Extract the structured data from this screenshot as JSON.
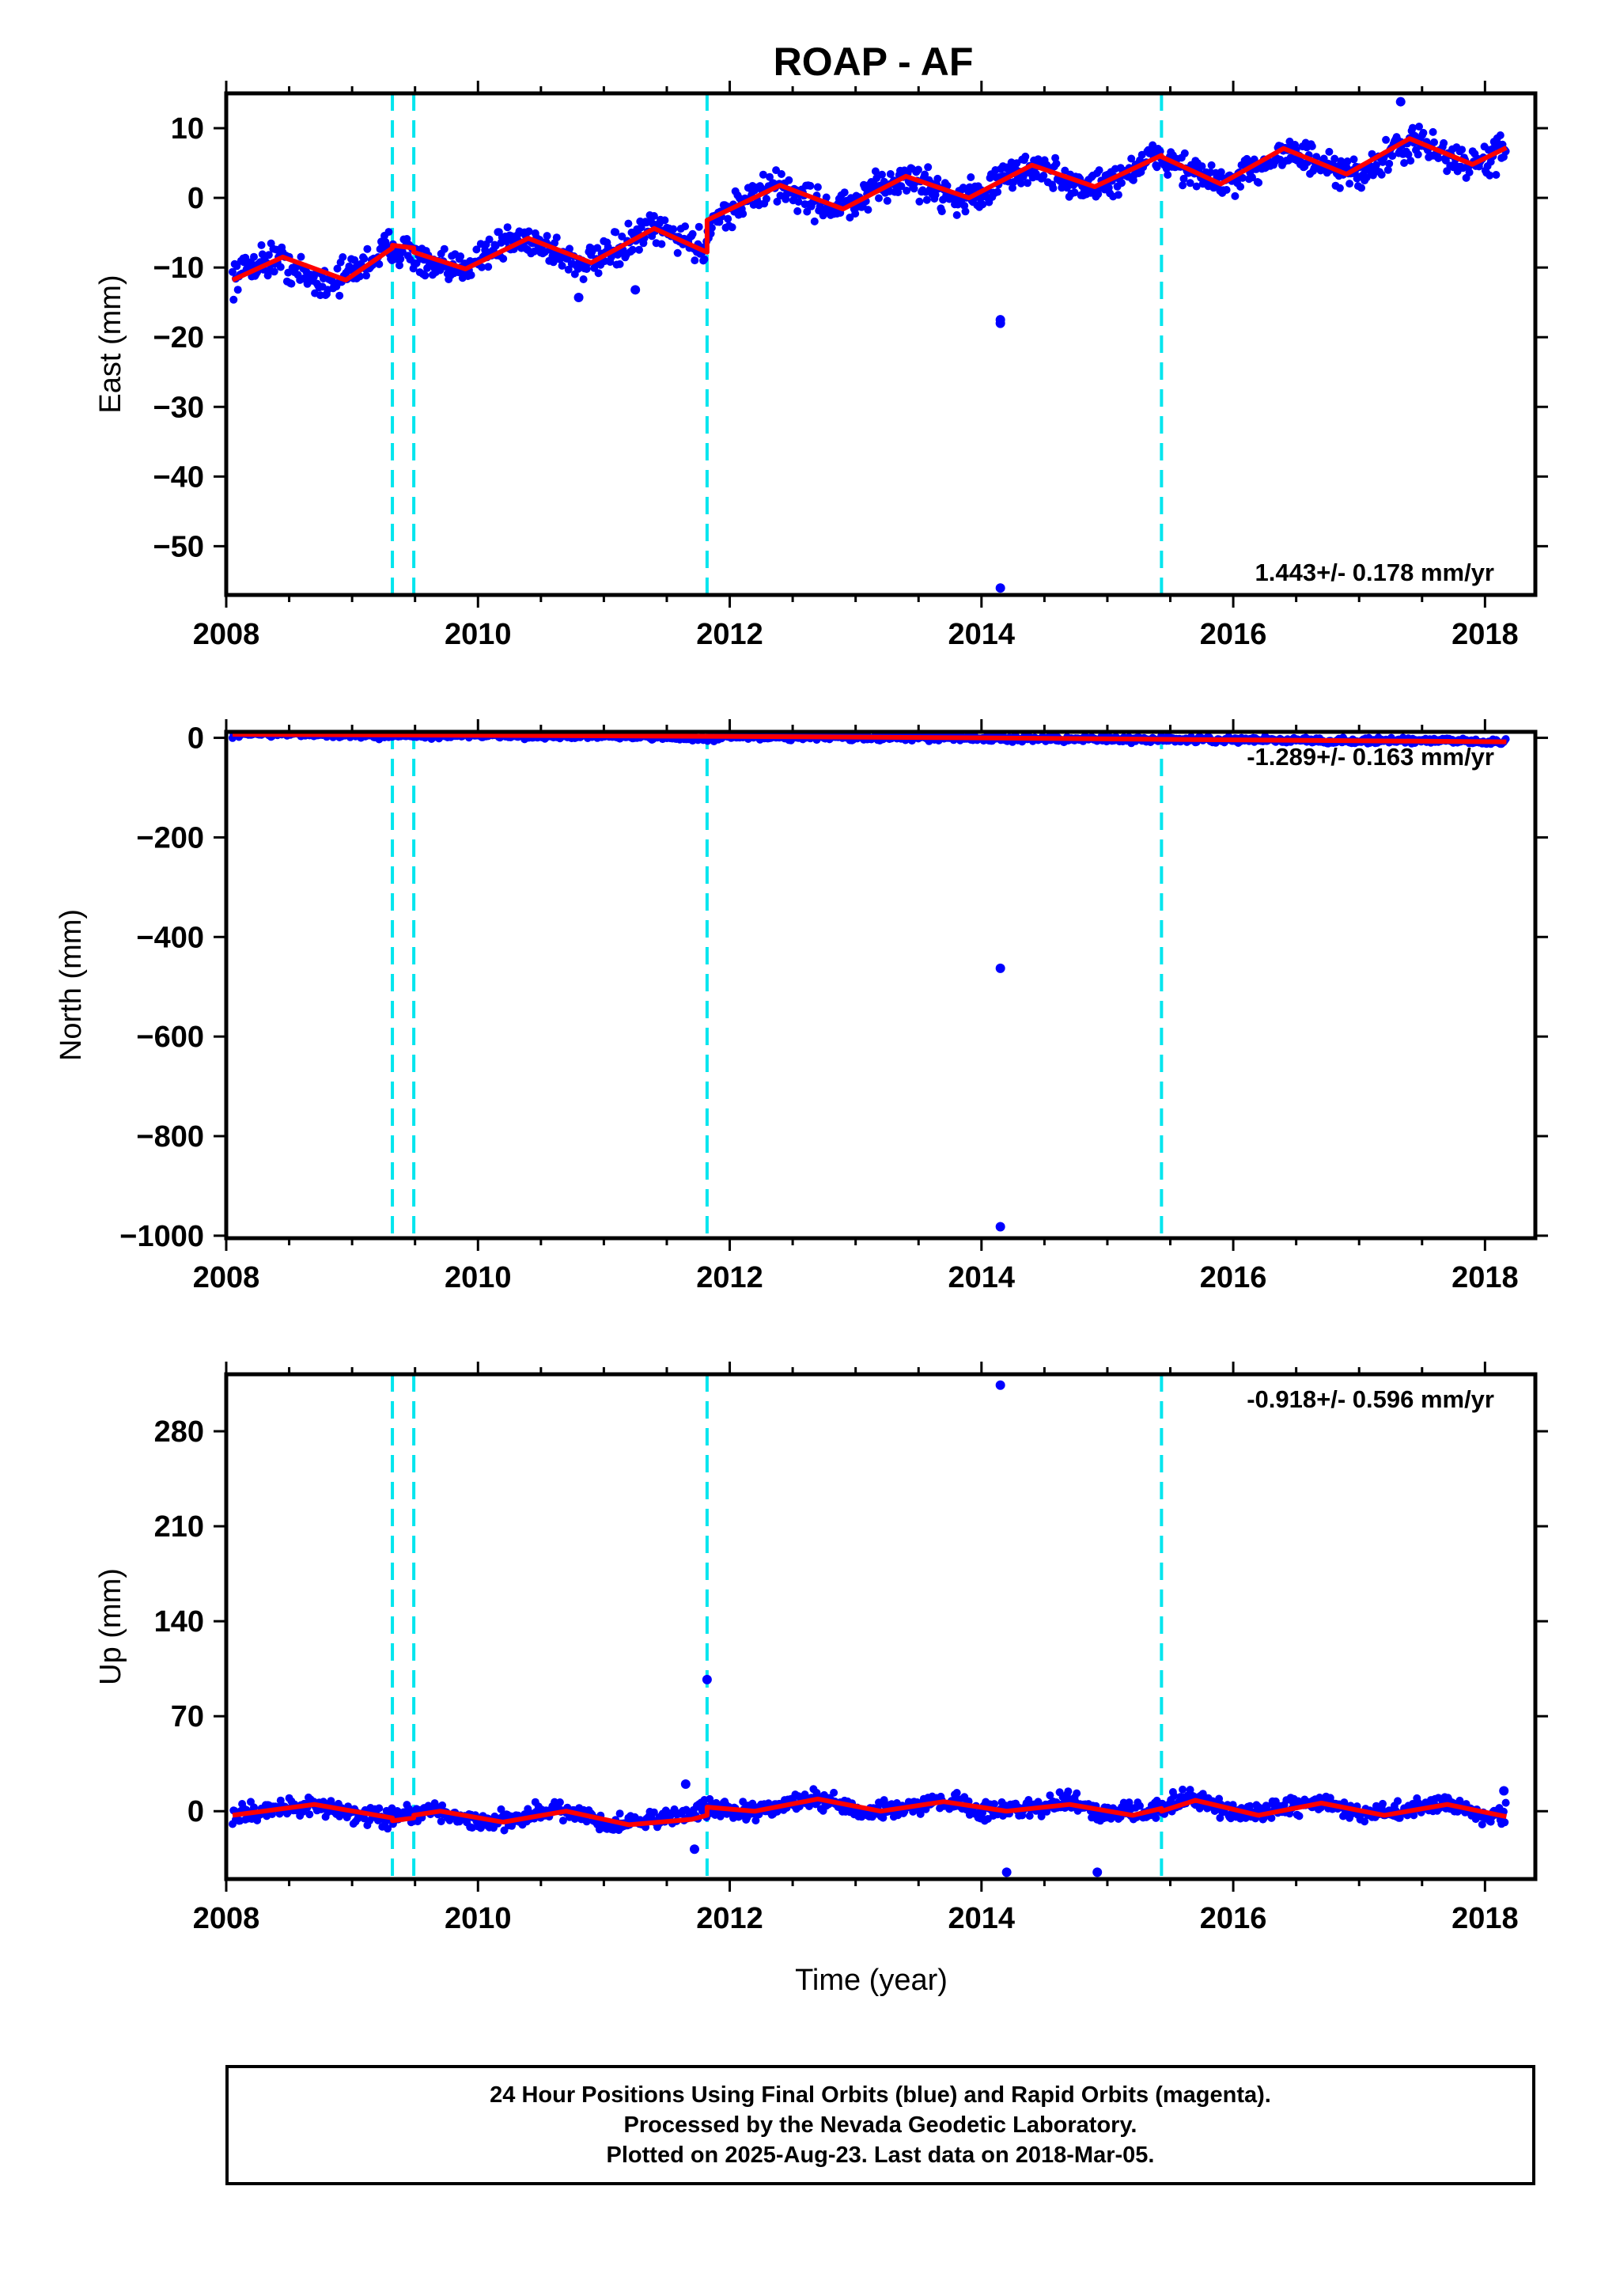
{
  "title": "ROAP - AF",
  "footer": {
    "line1": "24 Hour Positions Using Final Orbits (blue) and Rapid Orbits (magenta).",
    "line2": "Processed by the Nevada Geodetic Laboratory.",
    "line3": "Plotted on 2025-Aug-23. Last data on 2018-Mar-05."
  },
  "colors": {
    "points": "#0000ff",
    "fit": "#ff0000",
    "offsets": "#00e5ee",
    "axes": "#000000"
  },
  "chart_data": [
    {
      "type": "scatter",
      "title": "ROAP - AF",
      "ylabel": "East (mm)",
      "xlabel": "",
      "xlim": [
        2008.0,
        2018.4
      ],
      "ylim": [
        -57,
        15
      ],
      "x_ticks": [
        2008,
        2010,
        2012,
        2014,
        2016,
        2018
      ],
      "y_ticks": [
        10,
        0,
        -10,
        -20,
        -30,
        -40,
        -50
      ],
      "tick_labels_y": [
        "10",
        "0",
        "−10",
        "−20",
        "−30",
        "−40",
        "−50"
      ],
      "rate_label": "1.443+/- 0.178 mm/yr",
      "rate_position": "bottom-right",
      "offsets": [
        2009.32,
        2009.49,
        2011.82,
        2015.43
      ],
      "series": [
        {
          "role": "daily positions",
          "x": [
            2008.05,
            2008.2,
            2008.4,
            2008.55,
            2008.75,
            2008.9,
            2009.1,
            2009.3,
            2009.45,
            2009.6,
            2009.8,
            2010.0,
            2010.2,
            2010.4,
            2010.6,
            2010.8,
            2011.0,
            2011.2,
            2011.4,
            2011.6,
            2011.8,
            2011.85,
            2012.0,
            2012.2,
            2012.4,
            2012.6,
            2012.8,
            2013.0,
            2013.2,
            2013.4,
            2013.6,
            2013.8,
            2014.0,
            2014.2,
            2014.4,
            2014.6,
            2014.8,
            2015.0,
            2015.2,
            2015.4,
            2015.6,
            2015.8,
            2016.0,
            2016.2,
            2016.4,
            2016.6,
            2016.8,
            2017.0,
            2017.2,
            2017.4,
            2017.6,
            2017.8,
            2018.0,
            2018.17
          ],
          "y": [
            -11.5,
            -9.5,
            -8.5,
            -10.5,
            -12.2,
            -11.5,
            -9.5,
            -7.0,
            -7.5,
            -10.0,
            -10.5,
            -8.5,
            -6.5,
            -5.8,
            -7.5,
            -9.5,
            -8.8,
            -6.5,
            -4.5,
            -5.5,
            -7.5,
            -3.0,
            -2.0,
            0.5,
            1.8,
            0.0,
            -1.5,
            -1.0,
            1.5,
            3.0,
            1.5,
            0.0,
            0.5,
            3.0,
            4.5,
            3.0,
            1.5,
            2.0,
            4.0,
            6.0,
            4.5,
            2.5,
            2.0,
            4.5,
            6.8,
            5.5,
            3.5,
            3.5,
            5.5,
            8.0,
            7.0,
            5.0,
            5.0,
            7.5
          ]
        },
        {
          "role": "outliers",
          "x": [
            2014.15,
            2014.15,
            2014.15,
            2017.33,
            2010.8,
            2011.25
          ],
          "y": [
            -17.5,
            -18.0,
            -56.0,
            13.8,
            -14.3,
            -13.2
          ]
        }
      ],
      "fit": {
        "x": [
          2008.05,
          2008.45,
          2008.95,
          2009.32,
          2009.32,
          2009.49,
          2009.49,
          2009.9,
          2010.4,
          2010.9,
          2011.4,
          2011.82,
          2011.82,
          2012.4,
          2012.9,
          2013.4,
          2013.9,
          2014.4,
          2014.9,
          2015.43,
          2015.43,
          2015.9,
          2016.4,
          2016.9,
          2017.4,
          2017.9,
          2018.17
        ],
        "y": [
          -11.8,
          -8.5,
          -11.8,
          -7.2,
          -6.8,
          -7.2,
          -7.8,
          -10.2,
          -5.8,
          -9.3,
          -4.4,
          -7.8,
          -3.2,
          1.8,
          -1.6,
          3.1,
          0.0,
          4.7,
          1.6,
          6.1,
          5.9,
          2.0,
          7.1,
          3.4,
          8.5,
          4.8,
          7.2
        ]
      }
    },
    {
      "type": "scatter",
      "ylabel": "North (mm)",
      "xlabel": "",
      "xlim": [
        2008.0,
        2018.4
      ],
      "ylim": [
        -1005,
        12
      ],
      "x_ticks": [
        2008,
        2010,
        2012,
        2014,
        2016,
        2018
      ],
      "y_ticks": [
        0,
        -200,
        -400,
        -600,
        -800,
        -1000
      ],
      "tick_labels_y": [
        "0",
        "−200",
        "−400",
        "−600",
        "−800",
        "−1000"
      ],
      "rate_label": "-1.289+/- 0.163 mm/yr",
      "rate_position": "top-right",
      "offsets": [
        2009.32,
        2009.49,
        2011.82,
        2015.43
      ],
      "series": [
        {
          "role": "daily positions",
          "x": [
            2008.05,
            2008.5,
            2009.0,
            2009.5,
            2010.0,
            2010.5,
            2011.0,
            2011.5,
            2011.8,
            2012.0,
            2012.5,
            2013.0,
            2013.5,
            2014.0,
            2014.5,
            2015.0,
            2015.5,
            2016.0,
            2016.5,
            2017.0,
            2017.5,
            2018.0,
            2018.17
          ],
          "y": [
            7,
            9,
            5,
            4,
            6,
            3,
            4,
            2,
            -3,
            3,
            2,
            1,
            0,
            -1,
            -2,
            -3,
            -3,
            -4,
            -5,
            -6,
            -6,
            -7,
            -8
          ]
        },
        {
          "role": "outliers",
          "x": [
            2014.15,
            2014.15
          ],
          "y": [
            -463,
            -982
          ]
        }
      ],
      "fit": {
        "x": [
          2008.05,
          2010.0,
          2012.0,
          2014.0,
          2016.0,
          2018.17
        ],
        "y": [
          7,
          5,
          3,
          0,
          -4,
          -8
        ]
      }
    },
    {
      "type": "scatter",
      "ylabel": "Up (mm)",
      "xlabel": "Time (year)",
      "xlim": [
        2008.0,
        2018.4
      ],
      "ylim": [
        -50,
        322
      ],
      "x_ticks": [
        2008,
        2010,
        2012,
        2014,
        2016,
        2018
      ],
      "y_ticks": [
        280,
        210,
        140,
        70,
        0
      ],
      "tick_labels_y": [
        "280",
        "210",
        "140",
        "70",
        "0"
      ],
      "rate_label": "-0.918+/- 0.596 mm/yr",
      "rate_position": "top-right",
      "offsets": [
        2009.32,
        2009.49,
        2011.82,
        2015.43
      ],
      "series": [
        {
          "role": "daily positions",
          "x": [
            2008.05,
            2008.3,
            2008.7,
            2009.0,
            2009.3,
            2009.6,
            2010.0,
            2010.3,
            2010.7,
            2011.0,
            2011.3,
            2011.7,
            2011.85,
            2012.2,
            2012.7,
            2013.0,
            2013.3,
            2013.7,
            2014.0,
            2014.3,
            2014.7,
            2015.0,
            2015.3,
            2015.7,
            2016.0,
            2016.3,
            2016.7,
            2017.0,
            2017.3,
            2017.7,
            2018.0,
            2018.17
          ],
          "y": [
            -3,
            0,
            5,
            -2,
            -5,
            0,
            -8,
            -5,
            2,
            -10,
            -8,
            0,
            3,
            0,
            10,
            0,
            2,
            8,
            0,
            2,
            8,
            -2,
            0,
            10,
            -2,
            0,
            7,
            -3,
            0,
            6,
            -5,
            -2
          ]
        },
        {
          "role": "outliers",
          "x": [
            2014.15,
            2011.82,
            2014.2,
            2014.92,
            2011.65,
            2011.72,
            2018.15
          ],
          "y": [
            314,
            97,
            -45,
            -45,
            20,
            -28,
            15
          ]
        }
      ],
      "fit": {
        "x": [
          2008.05,
          2008.7,
          2009.32,
          2009.32,
          2009.49,
          2009.49,
          2009.7,
          2010.2,
          2010.7,
          2011.2,
          2011.7,
          2011.82,
          2011.82,
          2012.2,
          2012.7,
          2013.2,
          2013.7,
          2014.2,
          2014.7,
          2015.2,
          2015.43,
          2015.43,
          2015.7,
          2016.2,
          2016.7,
          2017.2,
          2017.7,
          2018.17
        ],
        "y": [
          -3,
          5,
          -5,
          -7,
          -5,
          -3,
          0,
          -8,
          0,
          -10,
          -6,
          -3,
          3,
          0,
          9,
          0,
          7,
          0,
          5,
          -3,
          2,
          0,
          8,
          -3,
          6,
          -3,
          5,
          -4
        ]
      }
    }
  ]
}
